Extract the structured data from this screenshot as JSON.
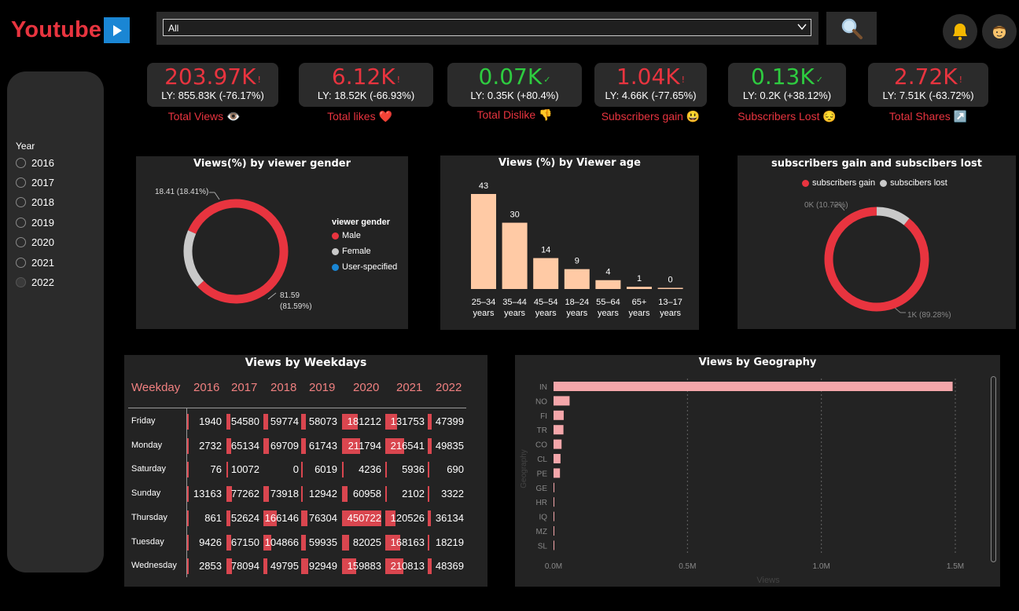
{
  "header": {
    "logo": "Youtube",
    "search_value": "All"
  },
  "kpis": [
    {
      "value": "203.97K",
      "mark": "!",
      "status": "red",
      "ly": "LY: 855.83K (-76.17%)",
      "label": "Total Views 👁️"
    },
    {
      "value": "6.12K",
      "mark": "!",
      "status": "red",
      "ly": "LY: 18.52K (-66.93%)",
      "label": "Total likes ❤️"
    },
    {
      "value": "0.07K",
      "mark": "✓",
      "status": "green",
      "ly": "LY: 0.35K (+80.4%)",
      "label": "Total Dislike 👎"
    },
    {
      "value": "1.04K",
      "mark": "!",
      "status": "red",
      "ly": "LY: 4.66K (-77.65%)",
      "label": "Subscribers gain 😃"
    },
    {
      "value": "0.13K",
      "mark": "✓",
      "status": "green",
      "ly": "LY: 0.2K (+38.12%)",
      "label": "Subscribers Lost 😔"
    },
    {
      "value": "2.72K",
      "mark": "!",
      "status": "red",
      "ly": "LY: 7.51K (-63.72%)",
      "label": "Total Shares ↗️"
    }
  ],
  "year_slicer": {
    "title": "Year",
    "options": [
      "2016",
      "2017",
      "2018",
      "2019",
      "2020",
      "2021",
      "2022"
    ],
    "selected": "2022"
  },
  "gender_chart": {
    "title": "Views(%) by viewer gender",
    "legend_title": "viewer gender",
    "legend": [
      "Male",
      "Female",
      "User-specified"
    ],
    "male_label_1": "81.59",
    "male_label_2": "(81.59%)",
    "female_label": "18.41 (18.41%)"
  },
  "age_chart": {
    "title": "Views (%) by Viewer age"
  },
  "subs_chart": {
    "title": "subscribers gain and subscibers lost",
    "legend": [
      "subscribers gain",
      "subscibers lost"
    ],
    "lost_label": "0K (10.72%)",
    "gain_label": "1K (89.28%)"
  },
  "weekday_matrix": {
    "title": "Views by Weekdays",
    "header": "Weekday",
    "years": [
      "2016",
      "2017",
      "2018",
      "2019",
      "2020",
      "2021",
      "2022"
    ],
    "rows": [
      {
        "day": "Friday",
        "values": [
          "1940",
          "54580",
          "59774",
          "58073",
          "181212",
          "131753",
          "47399"
        ]
      },
      {
        "day": "Monday",
        "values": [
          "2732",
          "65134",
          "69709",
          "61743",
          "211794",
          "216541",
          "49835"
        ]
      },
      {
        "day": "Saturday",
        "values": [
          "76",
          "10072",
          "0",
          "6019",
          "4236",
          "5936",
          "690"
        ]
      },
      {
        "day": "Sunday",
        "values": [
          "13163",
          "77262",
          "73918",
          "12942",
          "60958",
          "2102",
          "3322"
        ]
      },
      {
        "day": "Thursday",
        "values": [
          "861",
          "52624",
          "166146",
          "76304",
          "450722",
          "120526",
          "36134"
        ]
      },
      {
        "day": "Tuesday",
        "values": [
          "9426",
          "67150",
          "104866",
          "59935",
          "82025",
          "168163",
          "18219"
        ]
      },
      {
        "day": "Wednesday",
        "values": [
          "2853",
          "78094",
          "49795",
          "92949",
          "159883",
          "210813",
          "48369"
        ]
      }
    ]
  },
  "geo_chart": {
    "title": "Views by Geography"
  },
  "colors": {
    "accent_red": "#e8343f",
    "positive_green": "#2ecc40",
    "male": "#e8343f",
    "female": "#c9c9c9",
    "user_specified": "#1a86d4",
    "age_bar": "#ffcaa5",
    "geo_bar": "#f4a6aa",
    "matrix_bar": "#d9464f",
    "panel_bg": "#232323"
  },
  "chart_data": [
    {
      "type": "pie",
      "title": "Views(%) by viewer gender",
      "categories": [
        "Male",
        "Female",
        "User-specified"
      ],
      "values": [
        81.59,
        18.41,
        0
      ],
      "legend": "right"
    },
    {
      "type": "bar",
      "title": "Views (%) by Viewer age",
      "categories": [
        "25–34 years",
        "35–44 years",
        "45–54 years",
        "18–24 years",
        "55–64 years",
        "65+ years",
        "13–17 years"
      ],
      "values": [
        43,
        30,
        14,
        9,
        4,
        1,
        0
      ],
      "ylim": [
        0,
        45
      ]
    },
    {
      "type": "pie",
      "title": "subscribers gain and subscibers lost",
      "categories": [
        "subscribers gain",
        "subscibers lost"
      ],
      "values": [
        89.28,
        10.72
      ],
      "legend": "top"
    },
    {
      "type": "bar",
      "orientation": "horizontal",
      "title": "Views by Geography",
      "categories": [
        "IN",
        "NO",
        "FI",
        "TR",
        "CO",
        "CL",
        "PE",
        "GE",
        "HR",
        "IQ",
        "MZ",
        "SL"
      ],
      "values": [
        1490000,
        60000,
        38000,
        37000,
        30000,
        26000,
        24000,
        3000,
        2500,
        2000,
        1500,
        1000
      ],
      "xlim": [
        0,
        1500000
      ],
      "xticks": [
        "0.0M",
        "0.5M",
        "1.0M",
        "1.5M"
      ],
      "xlabel": "Views",
      "ylabel": "Geography"
    }
  ]
}
